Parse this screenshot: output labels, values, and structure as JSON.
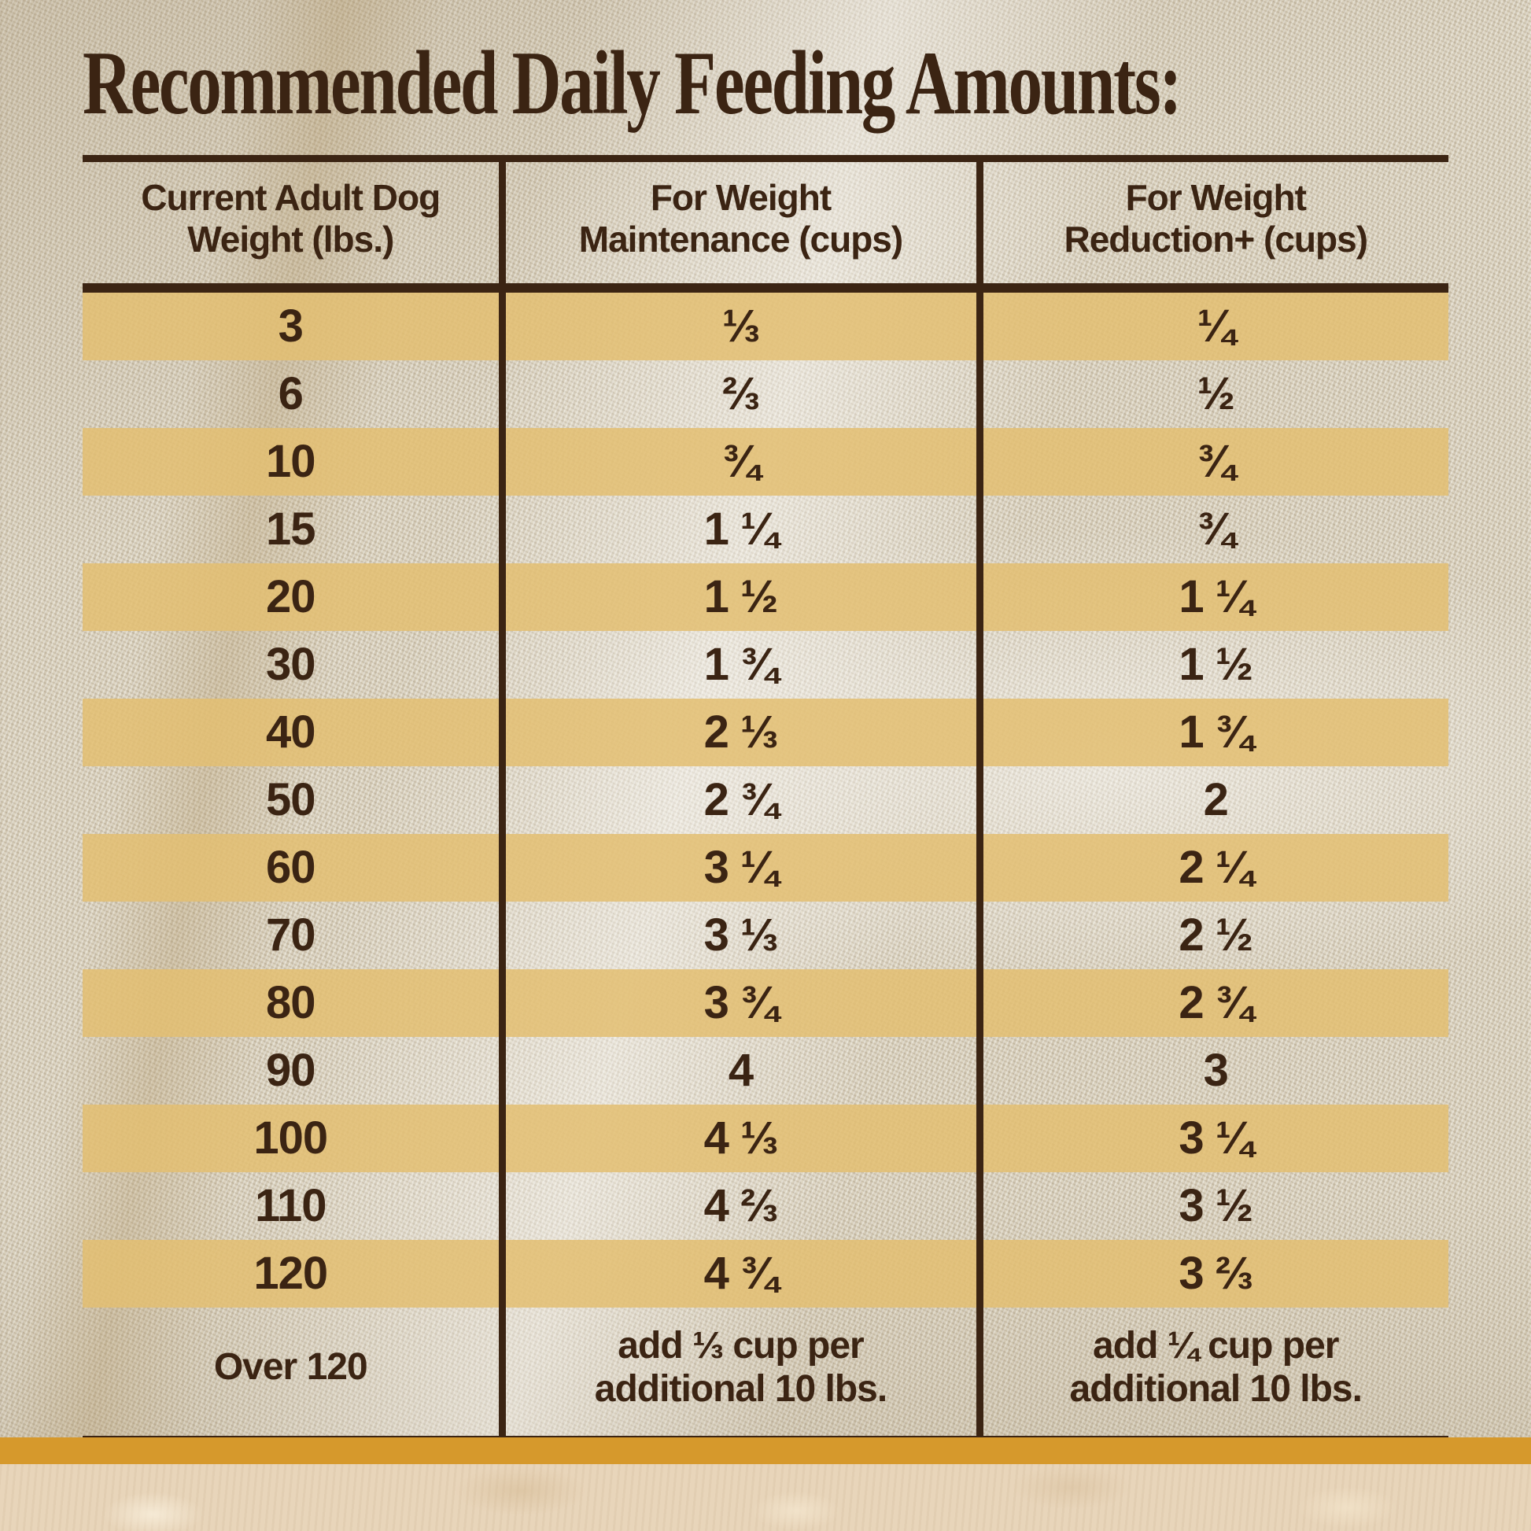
{
  "title": "Recommended Daily Feeding Amounts:",
  "table": {
    "columns": [
      "Current Adult Dog\nWeight (lbs.)",
      "For Weight\nMaintenance (cups)",
      "For Weight\nReduction+ (cups)"
    ],
    "rows": [
      {
        "weight": "3",
        "maintenance": "⅓",
        "reduction": "¼",
        "highlight": true,
        "footer": false
      },
      {
        "weight": "6",
        "maintenance": "⅔",
        "reduction": "½",
        "highlight": false,
        "footer": false
      },
      {
        "weight": "10",
        "maintenance": "¾",
        "reduction": "¾",
        "highlight": true,
        "footer": false
      },
      {
        "weight": "15",
        "maintenance": "1 ¼",
        "reduction": "¾",
        "highlight": false,
        "footer": false
      },
      {
        "weight": "20",
        "maintenance": "1 ½",
        "reduction": "1 ¼",
        "highlight": true,
        "footer": false
      },
      {
        "weight": "30",
        "maintenance": "1 ¾",
        "reduction": "1 ½",
        "highlight": false,
        "footer": false
      },
      {
        "weight": "40",
        "maintenance": "2 ⅓",
        "reduction": "1 ¾",
        "highlight": true,
        "footer": false
      },
      {
        "weight": "50",
        "maintenance": "2 ¾",
        "reduction": "2",
        "highlight": false,
        "footer": false
      },
      {
        "weight": "60",
        "maintenance": "3 ¼",
        "reduction": "2 ¼",
        "highlight": true,
        "footer": false
      },
      {
        "weight": "70",
        "maintenance": "3 ⅓",
        "reduction": "2 ½",
        "highlight": false,
        "footer": false
      },
      {
        "weight": "80",
        "maintenance": "3 ¾",
        "reduction": "2 ¾",
        "highlight": true,
        "footer": false
      },
      {
        "weight": "90",
        "maintenance": "4",
        "reduction": "3",
        "highlight": false,
        "footer": false
      },
      {
        "weight": "100",
        "maintenance": "4 ⅓",
        "reduction": "3 ¼",
        "highlight": true,
        "footer": false
      },
      {
        "weight": "110",
        "maintenance": "4 ⅔",
        "reduction": "3 ½",
        "highlight": false,
        "footer": false
      },
      {
        "weight": "120",
        "maintenance": "4 ¾",
        "reduction": "3 ⅔",
        "highlight": true,
        "footer": false
      },
      {
        "weight": "Over 120",
        "maintenance": "add ⅓ cup per\nadditional 10 lbs.",
        "reduction": "add ¼ cup per\nadditional 10 lbs.",
        "highlight": false,
        "footer": true
      }
    ]
  },
  "colors": {
    "text_brown": "#3b2413",
    "stripe_gold": "#e2bd72",
    "accent_bar_gold": "#d6992c",
    "fabric_base": "#dcd4c1",
    "stone_base": "#e8d5ba"
  }
}
